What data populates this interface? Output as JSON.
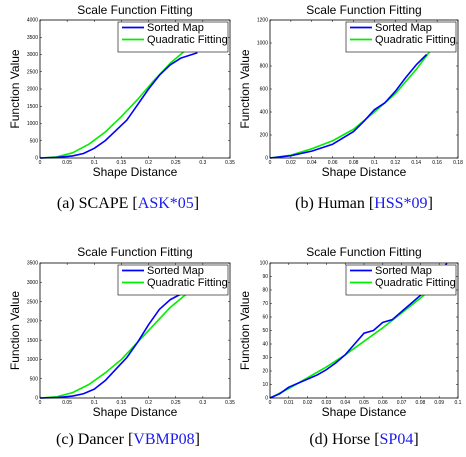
{
  "colors": {
    "sorted": "#0000ff",
    "quadratic": "#00ee00",
    "citation": "#1a1aee"
  },
  "chart_data": [
    {
      "type": "line",
      "title": "Scale Function Fitting",
      "xlabel": "Shape Distance",
      "ylabel": "Function Value",
      "xlim": [
        0,
        0.35
      ],
      "ylim": [
        0,
        4000
      ],
      "xticks": [
        0,
        0.05,
        0.1,
        0.15,
        0.2,
        0.25,
        0.3,
        0.35
      ],
      "xtick_labels": [
        "0",
        "0.05",
        "0.1",
        "0.15",
        "0.2",
        "0.25",
        "0.3",
        "0.35"
      ],
      "yticks": [
        0,
        500,
        1000,
        1500,
        2000,
        2500,
        3000,
        3500,
        4000
      ],
      "ytick_labels": [
        "0",
        "500",
        "1000",
        "1500",
        "2000",
        "2500",
        "3000",
        "3500",
        "4000"
      ],
      "legend_position": "top-right",
      "series": [
        {
          "name": "Sorted Map",
          "x": [
            0,
            0.03,
            0.06,
            0.08,
            0.1,
            0.12,
            0.14,
            0.16,
            0.18,
            0.2,
            0.22,
            0.24,
            0.26,
            0.28,
            0.29
          ],
          "y": [
            0,
            15,
            60,
            130,
            280,
            500,
            800,
            1100,
            1550,
            2000,
            2400,
            2700,
            2900,
            3000,
            3050
          ]
        },
        {
          "name": "Quadratic Fitting",
          "x": [
            0,
            0.03,
            0.06,
            0.09,
            0.12,
            0.15,
            0.18,
            0.21,
            0.24,
            0.27
          ],
          "y": [
            0,
            30,
            150,
            400,
            750,
            1200,
            1700,
            2250,
            2750,
            3150
          ]
        }
      ],
      "caption": {
        "label": "(a)  SCAPE [",
        "cite": "ASK*05",
        "end": "]"
      }
    },
    {
      "type": "line",
      "title": "Scale Function Fitting",
      "xlabel": "Shape Distance",
      "ylabel": "Function Value",
      "xlim": [
        0,
        0.18
      ],
      "ylim": [
        0,
        1200
      ],
      "xticks": [
        0,
        0.02,
        0.04,
        0.06,
        0.08,
        0.1,
        0.12,
        0.14,
        0.16,
        0.18
      ],
      "xtick_labels": [
        "0",
        "0.02",
        "0.04",
        "0.06",
        "0.08",
        "0.1",
        "0.12",
        "0.14",
        "0.16",
        "0.18"
      ],
      "yticks": [
        0,
        200,
        400,
        600,
        800,
        1000,
        1200
      ],
      "ytick_labels": [
        "0",
        "200",
        "400",
        "600",
        "800",
        "1000",
        "1200"
      ],
      "legend_position": "top-right",
      "series": [
        {
          "name": "Sorted Map",
          "x": [
            0,
            0.02,
            0.04,
            0.06,
            0.08,
            0.09,
            0.1,
            0.11,
            0.12,
            0.13,
            0.14,
            0.15
          ],
          "y": [
            0,
            20,
            60,
            120,
            230,
            320,
            420,
            480,
            580,
            700,
            810,
            900
          ]
        },
        {
          "name": "Quadratic Fitting",
          "x": [
            0,
            0.02,
            0.04,
            0.06,
            0.08,
            0.1,
            0.12,
            0.14,
            0.155
          ],
          "y": [
            0,
            25,
            80,
            150,
            250,
            400,
            560,
            770,
            950
          ]
        }
      ],
      "caption": {
        "label": "(b)  Human [",
        "cite": "HSS*09",
        "end": "]"
      }
    },
    {
      "type": "line",
      "title": "Scale Function Fitting",
      "xlabel": "Shape Distance",
      "ylabel": "Function Value",
      "xlim": [
        0,
        0.35
      ],
      "ylim": [
        0,
        3500
      ],
      "xticks": [
        0,
        0.05,
        0.1,
        0.15,
        0.2,
        0.25,
        0.3,
        0.35
      ],
      "xtick_labels": [
        "0",
        "0.05",
        "0.1",
        "0.15",
        "0.2",
        "0.25",
        "0.3",
        "0.35"
      ],
      "yticks": [
        0,
        500,
        1000,
        1500,
        2000,
        2500,
        3000,
        3500
      ],
      "ytick_labels": [
        "0",
        "500",
        "1000",
        "1500",
        "2000",
        "2500",
        "3000",
        "3500"
      ],
      "legend_position": "top-right",
      "series": [
        {
          "name": "Sorted Map",
          "x": [
            0,
            0.03,
            0.06,
            0.08,
            0.1,
            0.12,
            0.14,
            0.16,
            0.18,
            0.2,
            0.22,
            0.24,
            0.26,
            0.27
          ],
          "y": [
            0,
            10,
            50,
            110,
            230,
            450,
            750,
            1050,
            1450,
            1900,
            2300,
            2550,
            2700,
            2750
          ]
        },
        {
          "name": "Quadratic Fitting",
          "x": [
            0,
            0.03,
            0.06,
            0.09,
            0.12,
            0.15,
            0.18,
            0.21,
            0.24,
            0.27
          ],
          "y": [
            0,
            30,
            140,
            350,
            650,
            1000,
            1450,
            1900,
            2350,
            2700
          ]
        }
      ],
      "caption": {
        "label": "(c)  Dancer [",
        "cite": "VBMP08",
        "end": "]"
      }
    },
    {
      "type": "line",
      "title": "Scale Function Fitting",
      "xlabel": "Shape Distance",
      "ylabel": "Function Value",
      "xlim": [
        0,
        0.1
      ],
      "ylim": [
        0,
        100
      ],
      "xticks": [
        0,
        0.01,
        0.02,
        0.03,
        0.04,
        0.05,
        0.06,
        0.07,
        0.08,
        0.09,
        0.1
      ],
      "xtick_labels": [
        "0",
        "0.01",
        "0.02",
        "0.03",
        "0.04",
        "0.05",
        "0.06",
        "0.07",
        "0.08",
        "0.09",
        "0.1"
      ],
      "yticks": [
        0,
        10,
        20,
        30,
        40,
        50,
        60,
        70,
        80,
        90,
        100
      ],
      "ytick_labels": [
        "0",
        "10",
        "20",
        "30",
        "40",
        "50",
        "60",
        "70",
        "80",
        "90",
        "100"
      ],
      "legend_position": "top-right",
      "series": [
        {
          "name": "Sorted Map",
          "x": [
            0,
            0.005,
            0.01,
            0.015,
            0.02,
            0.025,
            0.03,
            0.035,
            0.04,
            0.045,
            0.05,
            0.055,
            0.06,
            0.065,
            0.07,
            0.075,
            0.08,
            0.085,
            0.09,
            0.094
          ],
          "y": [
            0,
            3,
            8,
            11,
            14,
            17,
            21,
            26,
            32,
            40,
            48,
            50,
            56,
            58,
            64,
            70,
            76,
            82,
            88,
            100
          ]
        },
        {
          "name": "Quadratic Fitting",
          "x": [
            0,
            0.01,
            0.02,
            0.03,
            0.04,
            0.05,
            0.06,
            0.07,
            0.08,
            0.09
          ],
          "y": [
            0,
            7,
            15,
            23,
            32,
            42,
            52,
            63,
            74,
            86
          ]
        }
      ],
      "caption": {
        "label": "(d)  Horse [",
        "cite": "SP04",
        "end": "]"
      }
    }
  ]
}
